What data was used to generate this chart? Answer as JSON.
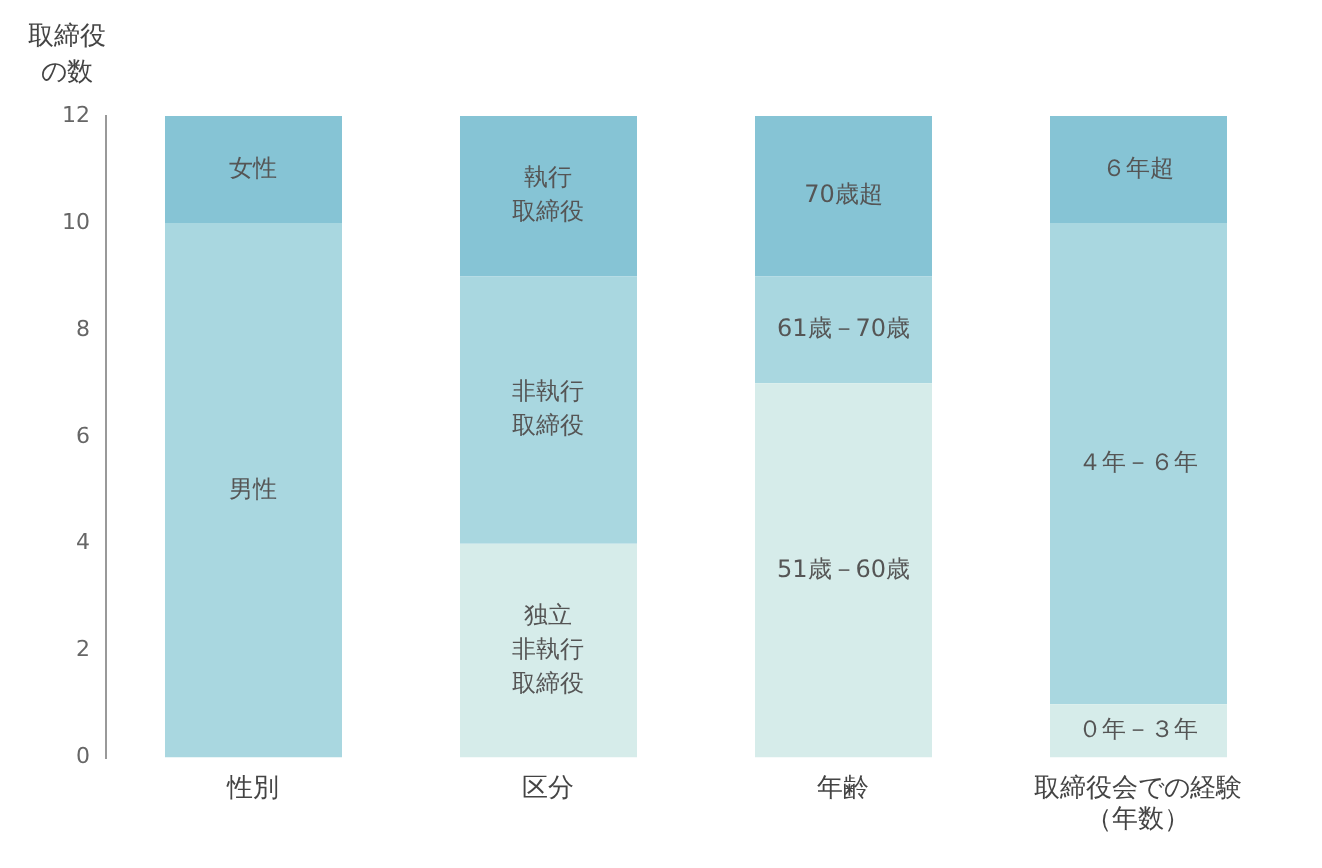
{
  "chart_data": {
    "type": "bar",
    "stacked": true,
    "ylabel": "取締役の数",
    "categories": [
      "性別",
      "区分",
      "年齢",
      "取締役会での経験（年数）"
    ],
    "series": [
      {
        "color": "#d6ecea",
        "values": [
          null,
          4,
          7,
          1
        ]
      },
      {
        "color": "#a9d7e0",
        "values": [
          10,
          5,
          2,
          9
        ]
      },
      {
        "color": "#86c4d5",
        "values": [
          2,
          3,
          3,
          2
        ]
      }
    ],
    "ylim": [
      0,
      12
    ],
    "yticks": [
      0,
      2,
      4,
      6,
      8,
      10,
      12
    ],
    "grid": false,
    "legend": false,
    "annotations": [
      "男性",
      "女性",
      "独立非執行取締役",
      "非執行取締役",
      "執行取締役",
      "51歳－60歳",
      "61歳－70歳",
      "70歳超",
      "０年－３年",
      "４年－６年",
      "６年超"
    ]
  }
}
